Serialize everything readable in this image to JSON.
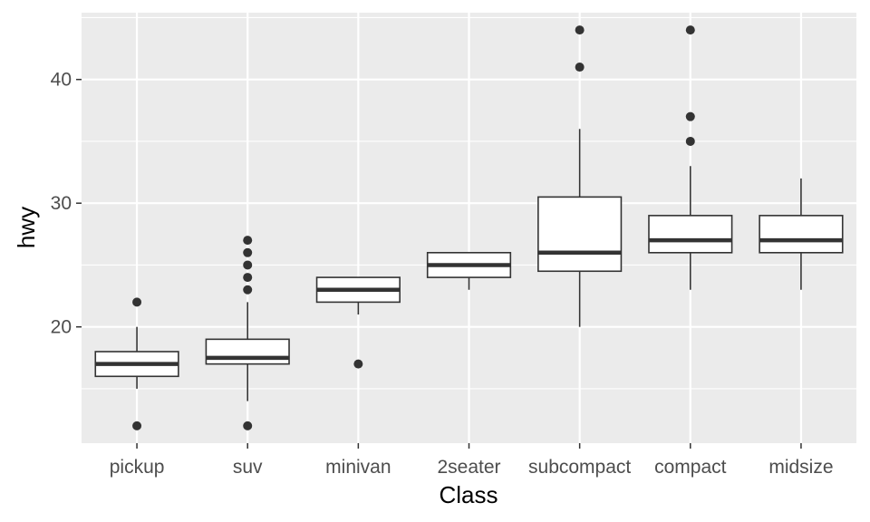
{
  "chart_data": {
    "type": "boxplot",
    "xlabel": "Class",
    "ylabel": "hwy",
    "ylim": [
      10.6,
      45.4
    ],
    "yticks": [
      20,
      30,
      40
    ],
    "grid": true,
    "colors": {
      "panel": "#ebebeb",
      "grid_major": "#ffffff",
      "box_fill": "#ffffff",
      "box_line": "#333333",
      "outlier": "#333333"
    },
    "categories": [
      "pickup",
      "suv",
      "minivan",
      "2seater",
      "subcompact",
      "compact",
      "midsize"
    ],
    "boxes": [
      {
        "category": "pickup",
        "lower_whisker": 15,
        "q1": 16,
        "median": 17,
        "q3": 18,
        "upper_whisker": 20,
        "outliers": [
          12,
          22
        ]
      },
      {
        "category": "suv",
        "lower_whisker": 14,
        "q1": 17,
        "median": 17.5,
        "q3": 19,
        "upper_whisker": 22,
        "outliers": [
          12,
          23,
          24,
          25,
          26,
          27
        ]
      },
      {
        "category": "minivan",
        "lower_whisker": 21,
        "q1": 22,
        "median": 23,
        "q3": 24,
        "upper_whisker": 24,
        "outliers": [
          17
        ]
      },
      {
        "category": "2seater",
        "lower_whisker": 23,
        "q1": 24,
        "median": 25,
        "q3": 26,
        "upper_whisker": 26,
        "outliers": []
      },
      {
        "category": "subcompact",
        "lower_whisker": 20,
        "q1": 24.5,
        "median": 26,
        "q3": 30.5,
        "upper_whisker": 36,
        "outliers": [
          41,
          44
        ]
      },
      {
        "category": "compact",
        "lower_whisker": 23,
        "q1": 26,
        "median": 27,
        "q3": 29,
        "upper_whisker": 33,
        "outliers": [
          35,
          37,
          44
        ]
      },
      {
        "category": "midsize",
        "lower_whisker": 23,
        "q1": 26,
        "median": 27,
        "q3": 29,
        "upper_whisker": 32,
        "outliers": []
      }
    ]
  }
}
